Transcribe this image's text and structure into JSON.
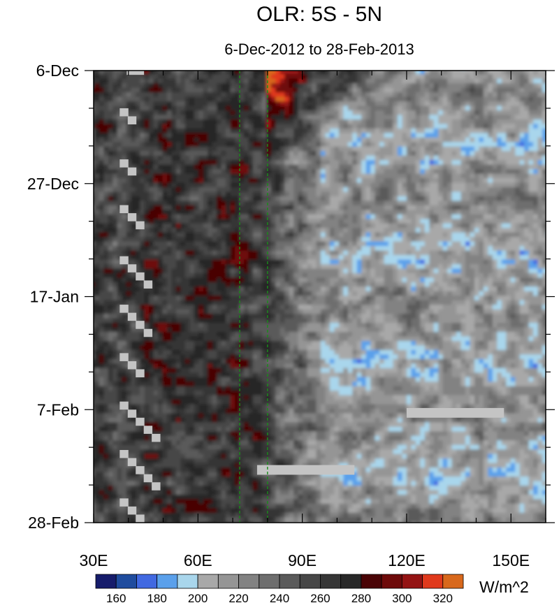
{
  "chart_data": {
    "type": "heatmap",
    "title": "OLR: 5S - 5N",
    "subtitle": "6-Dec-2012 to 28-Feb-2013",
    "xlabel": "",
    "ylabel": "",
    "x_tick_labels": [
      "30E",
      "60E",
      "90E",
      "120E",
      "150E"
    ],
    "x_tick_values": [
      30,
      60,
      90,
      120,
      150
    ],
    "xlim": [
      30,
      160
    ],
    "y_tick_labels": [
      "6-Dec",
      "27-Dec",
      "17-Jan",
      "7-Feb",
      "28-Feb"
    ],
    "y_tick_days": [
      0,
      21,
      42,
      63,
      84
    ],
    "ylim_days": [
      0,
      84
    ],
    "reference_lines_lon": [
      72,
      80
    ],
    "reference_line_color": "#1a8c1a",
    "missing_color": "#c4c4c4",
    "colorbar": {
      "unit": "W/m^2",
      "levels": [
        160,
        170,
        180,
        190,
        200,
        210,
        220,
        230,
        240,
        250,
        260,
        270,
        280,
        290,
        300,
        310,
        320
      ],
      "labels": [
        "160",
        "180",
        "200",
        "220",
        "240",
        "260",
        "280",
        "300",
        "320"
      ],
      "colors": [
        "#161c6b",
        "#1f4c9e",
        "#4169e1",
        "#5aa0eb",
        "#a9d6ec",
        "#a8a8a8",
        "#959595",
        "#828282",
        "#6e6e6e",
        "#5a5a5a",
        "#474747",
        "#363636",
        "#282828",
        "#4a0406",
        "#6e0a0a",
        "#941313",
        "#e0391c",
        "#d8681c"
      ]
    }
  }
}
